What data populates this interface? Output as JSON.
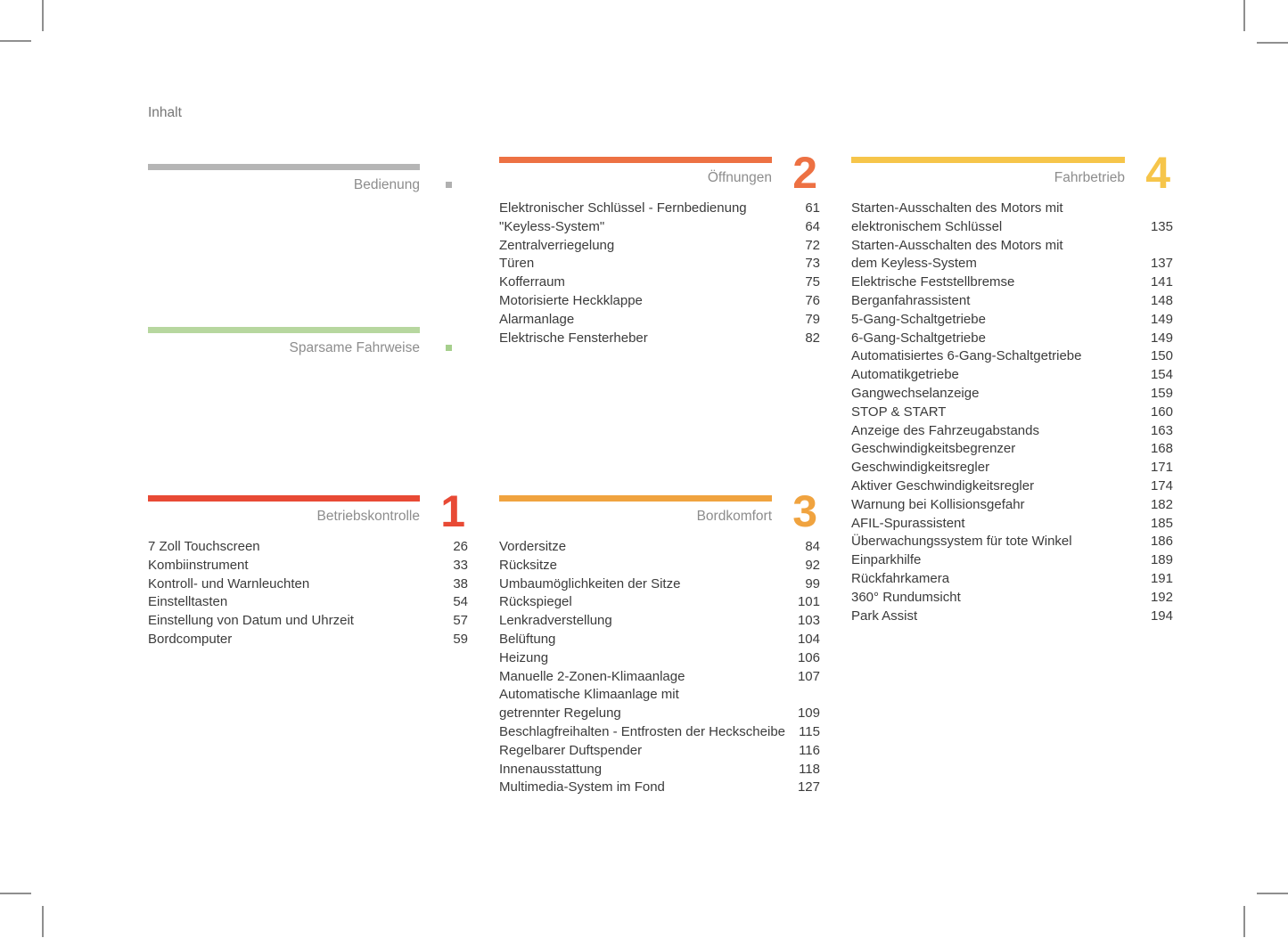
{
  "page": {
    "title": "Inhalt"
  },
  "colors": {
    "item_text": "#3b3b3b",
    "section_label": "#8d8d8d",
    "crop_mark": "#8f8f8f",
    "bar_gray": "#b5b5b5",
    "bar_green": "#b7d79f",
    "bar_red": "#e84a35",
    "bar_orange": "#ed7143",
    "bar_amber": "#f0a33f",
    "bar_yellow": "#f6c54a"
  },
  "sections": [
    {
      "id": "bedienung",
      "label": "Bedienung",
      "bar_color": "#b5b5b5",
      "marker_color": "#b0b0b0",
      "items": []
    },
    {
      "id": "sparsame-fahrweise",
      "label": "Sparsame Fahrweise",
      "bar_color": "#b7d79f",
      "marker_color": "#a6cf8d",
      "items": []
    },
    {
      "id": "betriebskontrolle",
      "label": "Betriebskontrolle",
      "number": "1",
      "bar_color": "#e84a35",
      "accent_color": "#e84a35",
      "items": [
        {
          "label": "7 Zoll Touchscreen",
          "page": "26"
        },
        {
          "label": "Kombiinstrument",
          "page": "33"
        },
        {
          "label": "Kontroll- und Warnleuchten",
          "page": "38"
        },
        {
          "label": "Einstelltasten",
          "page": "54"
        },
        {
          "label": "Einstellung von Datum und Uhrzeit",
          "page": "57"
        },
        {
          "label": "Bordcomputer",
          "page": "59"
        }
      ]
    },
    {
      "id": "oeffnungen",
      "label": "Öffnungen",
      "number": "2",
      "bar_color": "#ed7143",
      "accent_color": "#ed7143",
      "items": [
        {
          "label": "Elektronischer Schlüssel - Fernbedienung",
          "page": "61"
        },
        {
          "label": "\"Keyless-System\"",
          "page": "64"
        },
        {
          "label": "Zentralverriegelung",
          "page": "72"
        },
        {
          "label": "Türen",
          "page": "73"
        },
        {
          "label": "Kofferraum",
          "page": "75"
        },
        {
          "label": "Motorisierte Heckklappe",
          "page": "76"
        },
        {
          "label": "Alarmanlage",
          "page": "79"
        },
        {
          "label": "Elektrische Fensterheber",
          "page": "82"
        }
      ]
    },
    {
      "id": "bordkomfort",
      "label": "Bordkomfort",
      "number": "3",
      "bar_color": "#f0a33f",
      "accent_color": "#f0a33f",
      "items": [
        {
          "label": "Vordersitze",
          "page": "84"
        },
        {
          "label": "Rücksitze",
          "page": "92"
        },
        {
          "label": "Umbaumöglichkeiten der Sitze",
          "page": "99"
        },
        {
          "label": "Rückspiegel",
          "page": "101"
        },
        {
          "label": "Lenkradverstellung",
          "page": "103"
        },
        {
          "label": "Belüftung",
          "page": "104"
        },
        {
          "label": "Heizung",
          "page": "106"
        },
        {
          "label": "Manuelle 2-Zonen-Klimaanlage",
          "page": "107"
        },
        {
          "label": "Automatische Klimaanlage mit\ngetrennter Regelung",
          "page": "109"
        },
        {
          "label": "Beschlagfreihalten - Entfrosten der Heckscheibe",
          "page": "115"
        },
        {
          "label": "Regelbarer Duftspender",
          "page": "116"
        },
        {
          "label": "Innenausstattung",
          "page": "118"
        },
        {
          "label": "Multimedia-System im Fond",
          "page": "127"
        }
      ]
    },
    {
      "id": "fahrbetrieb",
      "label": "Fahrbetrieb",
      "number": "4",
      "bar_color": "#f6c54a",
      "accent_color": "#f6c54a",
      "items": [
        {
          "label": "Starten-Ausschalten des Motors mit\nelektronischem Schlüssel",
          "page": "135"
        },
        {
          "label": "Starten-Ausschalten des Motors mit\ndem Keyless-System",
          "page": "137"
        },
        {
          "label": "Elektrische Feststellbremse",
          "page": "141"
        },
        {
          "label": "Berganfahrassistent",
          "page": "148"
        },
        {
          "label": "5-Gang-Schaltgetriebe",
          "page": "149"
        },
        {
          "label": "6-Gang-Schaltgetriebe",
          "page": "149"
        },
        {
          "label": "Automatisiertes 6-Gang-Schaltgetriebe",
          "page": "150"
        },
        {
          "label": "Automatikgetriebe",
          "page": "154"
        },
        {
          "label": "Gangwechselanzeige",
          "page": "159"
        },
        {
          "label": "STOP & START",
          "page": "160"
        },
        {
          "label": "Anzeige des Fahrzeugabstands",
          "page": "163"
        },
        {
          "label": "Geschwindigkeitsbegrenzer",
          "page": "168"
        },
        {
          "label": "Geschwindigkeitsregler",
          "page": "171"
        },
        {
          "label": "Aktiver Geschwindigkeitsregler",
          "page": "174"
        },
        {
          "label": "Warnung bei Kollisionsgefahr",
          "page": "182"
        },
        {
          "label": "AFIL-Spurassistent",
          "page": "185"
        },
        {
          "label": "Überwachungssystem für tote Winkel",
          "page": "186"
        },
        {
          "label": "Einparkhilfe",
          "page": "189"
        },
        {
          "label": "Rückfahrkamera",
          "page": "191"
        },
        {
          "label": "360° Rundumsicht",
          "page": "192"
        },
        {
          "label": "Park Assist",
          "page": "194"
        }
      ]
    }
  ]
}
